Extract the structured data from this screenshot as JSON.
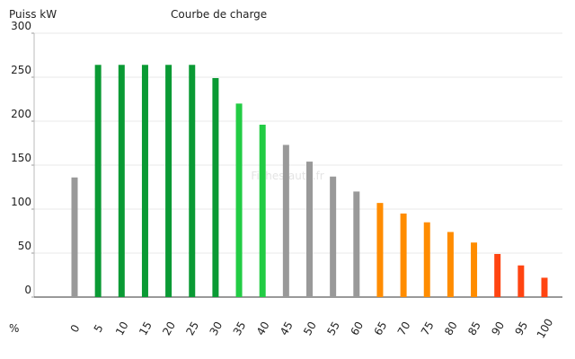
{
  "chart_data": {
    "type": "bar",
    "title": "Courbe de charge",
    "y_label": "Puiss kW",
    "x_label": "%",
    "watermark": "Fiches-auto.fr",
    "categories": [
      "0",
      "5",
      "10",
      "15",
      "20",
      "25",
      "30",
      "35",
      "40",
      "45",
      "50",
      "55",
      "60",
      "65",
      "70",
      "75",
      "80",
      "85",
      "90",
      "95",
      "100"
    ],
    "values": [
      136,
      264,
      264,
      264,
      264,
      264,
      249,
      220,
      196,
      173,
      154,
      137,
      120,
      107,
      95,
      85,
      74,
      62,
      49,
      36,
      22
    ],
    "colors": [
      "#999999",
      "#0a9a34",
      "#0a9a34",
      "#0a9a34",
      "#0a9a34",
      "#0a9a34",
      "#0a9a34",
      "#22cc44",
      "#22cc44",
      "#999999",
      "#999999",
      "#999999",
      "#999999",
      "#ff8c00",
      "#ff8c00",
      "#ff8c00",
      "#ff8c00",
      "#ff8c00",
      "#ff4411",
      "#ff4411",
      "#ff4411"
    ],
    "ylim": [
      0,
      300
    ],
    "yticks": [
      0,
      50,
      100,
      150,
      200,
      250,
      300
    ],
    "grid": true
  }
}
